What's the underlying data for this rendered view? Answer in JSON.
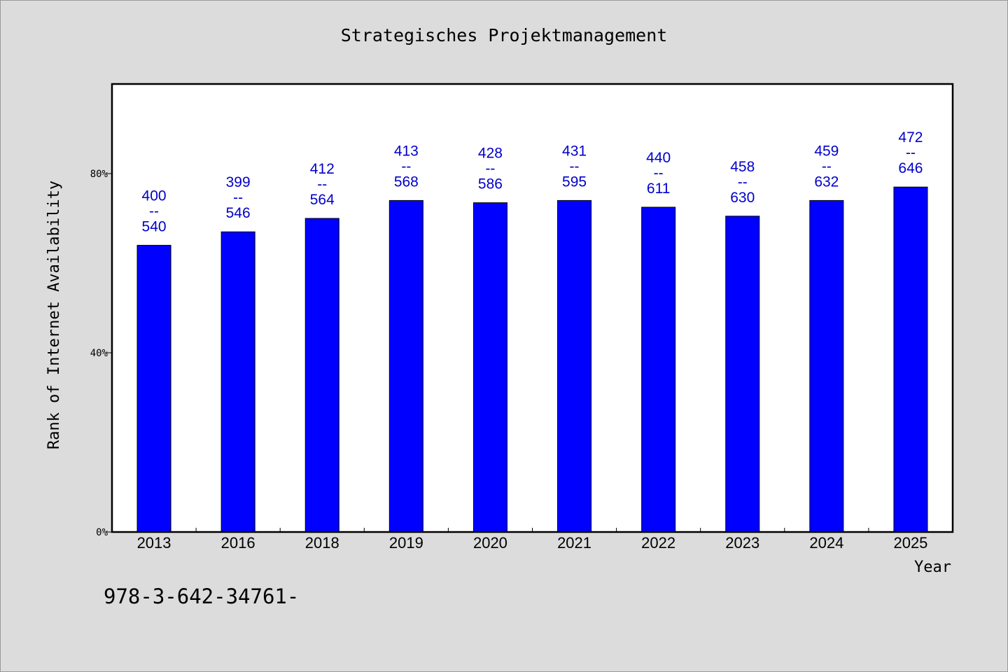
{
  "chart_data": {
    "type": "bar",
    "title": "Strategisches Projektmanagement",
    "xlabel": "Year",
    "ylabel": "Rank of Internet Availability",
    "categories": [
      "2013",
      "2016",
      "2018",
      "2019",
      "2020",
      "2021",
      "2022",
      "2023",
      "2024",
      "2025"
    ],
    "values": [
      64,
      67,
      70,
      74,
      73.5,
      74,
      72.5,
      70.5,
      74,
      77
    ],
    "labels_top": [
      "400",
      "399",
      "412",
      "413",
      "428",
      "431",
      "440",
      "458",
      "459",
      "472"
    ],
    "labels_sep": "--",
    "labels_bottom": [
      "540",
      "546",
      "564",
      "568",
      "586",
      "595",
      "611",
      "630",
      "632",
      "646"
    ],
    "ylim": [
      0,
      100
    ],
    "yticks": [
      0,
      40,
      80
    ],
    "ytick_labels": [
      "0%",
      "40%",
      "80%"
    ],
    "grid": false,
    "bar_color": "#0000ff",
    "label_color": "#0000cc",
    "plot_background": "#ffffff",
    "page_background": "#dcdcdc"
  },
  "footer": {
    "code": "978-3-642-34761-"
  }
}
